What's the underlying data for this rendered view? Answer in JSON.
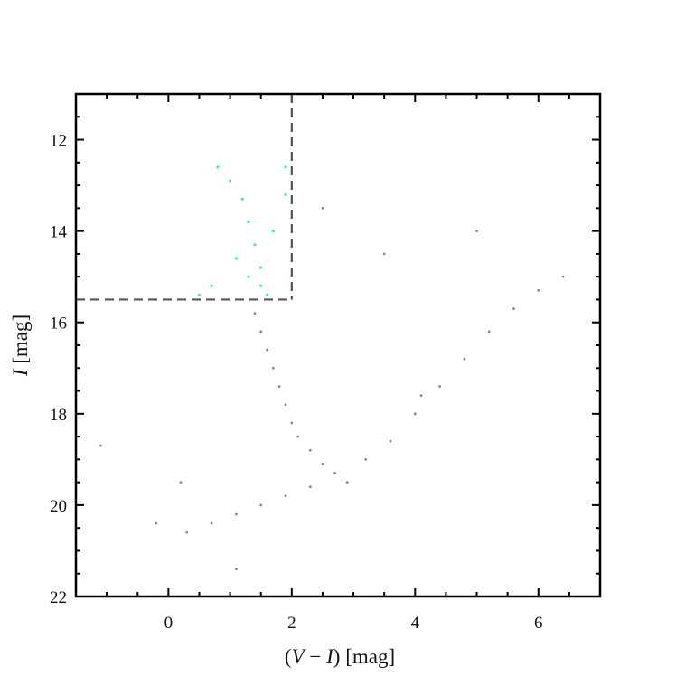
{
  "chart_data": {
    "type": "scatter",
    "xlabel": "(V − I) [mag]",
    "ylabel": "I [mag]",
    "xlabel_parts": [
      "(",
      "V",
      " − ",
      "I",
      ") [mag]"
    ],
    "ylabel_parts": [
      "I",
      " [mag]"
    ],
    "xlim": [
      -1.5,
      7.0
    ],
    "ylim": [
      22.0,
      11.0
    ],
    "y_inverted": true,
    "grid": false,
    "x_ticks": [
      0,
      2,
      4,
      6
    ],
    "x_tick_labels": [
      "0",
      "2",
      "4",
      "6"
    ],
    "y_ticks": [
      12,
      14,
      16,
      18,
      20,
      22
    ],
    "y_tick_labels": [
      "12",
      "14",
      "16",
      "18",
      "20",
      "22"
    ],
    "selection_cut": {
      "color_max": 2.0,
      "mag_max": 15.5
    },
    "series": [
      {
        "color": "#888888",
        "marker": "dot",
        "points": [
          [
            1.4,
            15.8
          ],
          [
            1.5,
            16.2
          ],
          [
            1.6,
            16.6
          ],
          [
            1.7,
            17.0
          ],
          [
            1.8,
            17.4
          ],
          [
            1.9,
            17.8
          ],
          [
            2.0,
            18.2
          ],
          [
            2.1,
            18.5
          ],
          [
            2.3,
            18.8
          ],
          [
            2.5,
            19.1
          ],
          [
            2.7,
            19.3
          ],
          [
            2.9,
            19.5
          ],
          [
            2.3,
            19.6
          ],
          [
            1.9,
            19.8
          ],
          [
            1.5,
            20.0
          ],
          [
            1.1,
            20.2
          ],
          [
            0.7,
            20.4
          ],
          [
            0.3,
            20.6
          ],
          [
            -0.2,
            20.4
          ],
          [
            3.2,
            19.0
          ],
          [
            3.6,
            18.6
          ],
          [
            4.0,
            18.0
          ],
          [
            4.4,
            17.4
          ],
          [
            4.8,
            16.8
          ],
          [
            5.2,
            16.2
          ],
          [
            5.6,
            15.7
          ],
          [
            6.0,
            15.3
          ],
          [
            6.4,
            15.0
          ],
          [
            4.1,
            17.6
          ],
          [
            2.5,
            13.5
          ],
          [
            3.5,
            14.5
          ],
          [
            5.0,
            14.0
          ],
          [
            -1.1,
            18.7
          ],
          [
            0.2,
            19.5
          ],
          [
            1.1,
            21.4
          ]
        ]
      },
      {
        "color": "#3ff0b0",
        "marker": "dot",
        "points": [
          [
            0.8,
            12.6
          ],
          [
            1.0,
            12.9
          ],
          [
            1.2,
            13.3
          ],
          [
            1.3,
            13.8
          ],
          [
            1.4,
            14.3
          ],
          [
            1.5,
            14.8
          ],
          [
            1.5,
            15.2
          ],
          [
            1.6,
            15.4
          ],
          [
            1.9,
            12.6
          ],
          [
            1.9,
            13.2
          ],
          [
            1.7,
            14.0
          ],
          [
            1.1,
            14.6
          ],
          [
            0.7,
            15.2
          ],
          [
            0.5,
            15.4
          ],
          [
            1.3,
            15.0
          ]
        ]
      }
    ]
  }
}
